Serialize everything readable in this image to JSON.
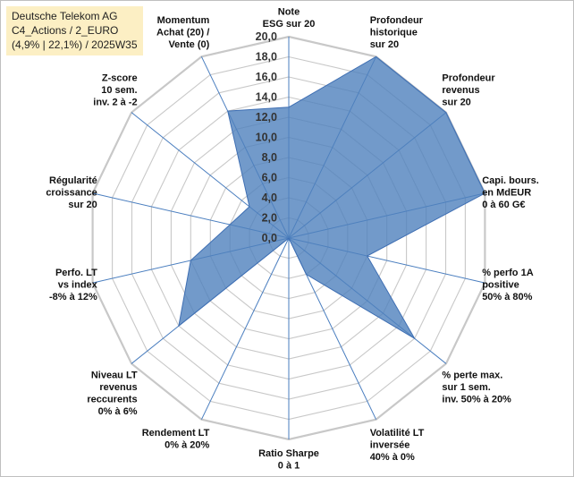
{
  "title": {
    "line1": "Deutsche Telekom AG",
    "line2": "C4_Actions / 2_EURO",
    "line3": "(4,9% | 22,1%) / 2025W35"
  },
  "colors": {
    "fill": "#4f81bd",
    "stroke": "#3f6fb3",
    "grid": "#c8c8c8",
    "spoke": "#4a7ebf",
    "title_bg": "#fcefc4"
  },
  "chart_data": {
    "type": "radar",
    "rmin": 0,
    "rmax": 20,
    "ticks": [
      "0,0",
      "2,0",
      "4,0",
      "6,0",
      "8,0",
      "10,0",
      "12,0",
      "14,0",
      "16,0",
      "18,0",
      "20,0"
    ],
    "axes": [
      {
        "lines": [
          "Note",
          "ESG sur 20"
        ],
        "value": 13
      },
      {
        "lines": [
          "Profondeur",
          "historique",
          "sur 20"
        ],
        "value": 20
      },
      {
        "lines": [
          "Profondeur",
          "revenus",
          "sur 20"
        ],
        "value": 20
      },
      {
        "lines": [
          "Capi. bours.",
          "en MdEUR",
          "0 à 60 G€"
        ],
        "value": 20
      },
      {
        "lines": [
          "% perfo 1A",
          "positive",
          "50% à 80%"
        ],
        "value": 8
      },
      {
        "lines": [
          "% perte max.",
          "sur 1 sem.",
          "inv. 50% à 20%"
        ],
        "value": 16
      },
      {
        "lines": [
          "Volatilité LT",
          "inversée",
          "40% à 0%"
        ],
        "value": 4
      },
      {
        "lines": [
          "Ratio Sharpe",
          "0 à 1"
        ],
        "value": 0
      },
      {
        "lines": [
          "Rendement LT",
          "0% à 20%"
        ],
        "value": 0
      },
      {
        "lines": [
          "Niveau LT",
          "revenus",
          "reccurents",
          "0% à 6%"
        ],
        "value": 14
      },
      {
        "lines": [
          "Perfo. LT",
          "vs index",
          "-8% à 12%"
        ],
        "value": 10
      },
      {
        "lines": [
          "Régularité",
          "croissance",
          "sur 20"
        ],
        "value": 6
      },
      {
        "lines": [
          "Z-score",
          "10 sem.",
          "inv. 2 à -2"
        ],
        "value": 5
      },
      {
        "lines": [
          "Momentum",
          "Achat (20) /",
          "Vente (0)"
        ],
        "value": 14
      }
    ]
  }
}
